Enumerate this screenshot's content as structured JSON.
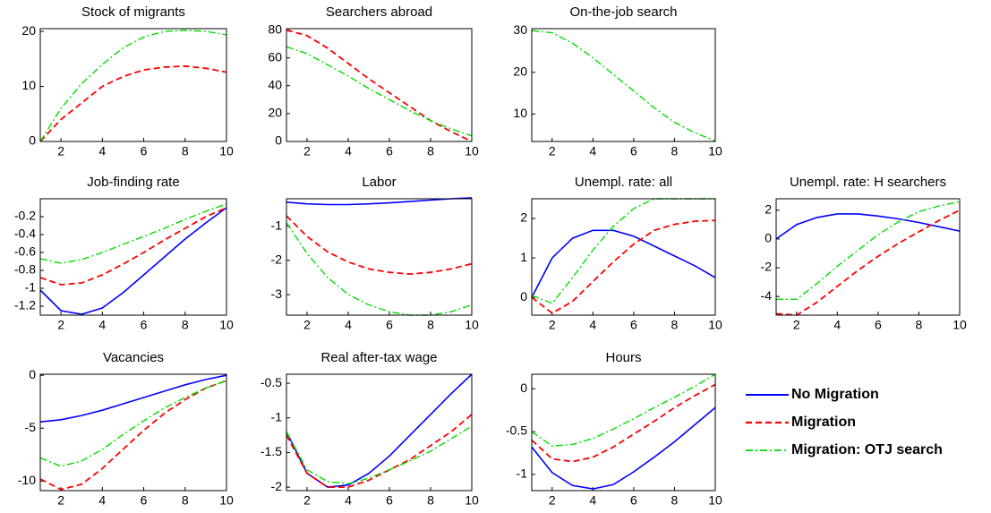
{
  "chart_data": [
    {
      "type": "line",
      "title": "Stock of migrants",
      "x": [
        1,
        2,
        3,
        4,
        5,
        6,
        7,
        8,
        9,
        10
      ],
      "xlim": [
        1,
        10
      ],
      "xticks": [
        2,
        4,
        6,
        8,
        10
      ],
      "ylim": [
        0,
        20.5
      ],
      "yticks": [
        0,
        10,
        20
      ],
      "series": [
        {
          "name": "Migration",
          "color": "#ff0000",
          "linestyle": "dashed",
          "values": [
            0,
            4,
            7,
            10,
            11.8,
            13,
            13.5,
            13.7,
            13.3,
            12.6
          ]
        },
        {
          "name": "Migration: OTJ search",
          "color": "#00dd00",
          "linestyle": "dashdot",
          "values": [
            0,
            6,
            10.5,
            14,
            17,
            19,
            20,
            20.2,
            20,
            19.4
          ]
        }
      ]
    },
    {
      "type": "line",
      "title": "Searchers abroad",
      "x": [
        1,
        2,
        3,
        4,
        5,
        6,
        7,
        8,
        9,
        10
      ],
      "xlim": [
        1,
        10
      ],
      "xticks": [
        2,
        4,
        6,
        8,
        10
      ],
      "ylim": [
        0,
        81
      ],
      "yticks": [
        0,
        20,
        40,
        60,
        80
      ],
      "series": [
        {
          "name": "Migration",
          "color": "#ff0000",
          "linestyle": "dashed",
          "values": [
            80,
            76,
            67,
            56,
            45,
            35,
            25,
            15,
            7,
            0
          ]
        },
        {
          "name": "Migration: OTJ search",
          "color": "#00dd00",
          "linestyle": "dashdot",
          "values": [
            68,
            63,
            55,
            47,
            38,
            30,
            22,
            15,
            9,
            4
          ]
        }
      ]
    },
    {
      "type": "line",
      "title": "On-the-job search",
      "x": [
        1,
        2,
        3,
        4,
        5,
        6,
        7,
        8,
        9,
        10
      ],
      "xlim": [
        1,
        10
      ],
      "xticks": [
        2,
        4,
        6,
        8,
        10
      ],
      "ylim": [
        3.4,
        30.5
      ],
      "yticks": [
        10,
        20,
        30
      ],
      "series": [
        {
          "name": "Migration: OTJ search",
          "color": "#00dd00",
          "linestyle": "dashdot",
          "values": [
            30,
            29.5,
            27,
            23.5,
            19.5,
            15.5,
            11.5,
            8,
            5.5,
            3.5
          ]
        }
      ]
    },
    {
      "type": "line",
      "title": "Job-finding rate",
      "x": [
        1,
        2,
        3,
        4,
        5,
        6,
        7,
        8,
        9,
        10
      ],
      "xlim": [
        1,
        10
      ],
      "xticks": [
        2,
        4,
        6,
        8,
        10
      ],
      "ylim": [
        -1.3,
        0
      ],
      "yticks": [
        -1.2,
        -1,
        -0.8,
        -0.6,
        -0.4,
        -0.2
      ],
      "series": [
        {
          "name": "No Migration",
          "color": "#0000ff",
          "linestyle": "solid",
          "values": [
            -1.02,
            -1.25,
            -1.29,
            -1.22,
            -1.05,
            -0.85,
            -0.65,
            -0.45,
            -0.27,
            -0.1
          ]
        },
        {
          "name": "Migration",
          "color": "#ff0000",
          "linestyle": "dashed",
          "values": [
            -0.88,
            -0.96,
            -0.94,
            -0.85,
            -0.73,
            -0.6,
            -0.46,
            -0.33,
            -0.2,
            -0.1
          ]
        },
        {
          "name": "Migration: OTJ search",
          "color": "#00dd00",
          "linestyle": "dashdot",
          "values": [
            -0.67,
            -0.72,
            -0.68,
            -0.6,
            -0.51,
            -0.42,
            -0.33,
            -0.23,
            -0.14,
            -0.06
          ]
        }
      ]
    },
    {
      "type": "line",
      "title": "Labor",
      "x": [
        1,
        2,
        3,
        4,
        5,
        6,
        7,
        8,
        9,
        10
      ],
      "xlim": [
        1,
        10
      ],
      "xticks": [
        2,
        4,
        6,
        8,
        10
      ],
      "ylim": [
        -3.6,
        -0.2
      ],
      "yticks": [
        -3,
        -2,
        -1
      ],
      "series": [
        {
          "name": "No Migration",
          "color": "#0000ff",
          "linestyle": "solid",
          "values": [
            -0.3,
            -0.35,
            -0.37,
            -0.37,
            -0.35,
            -0.32,
            -0.28,
            -0.24,
            -0.2,
            -0.17
          ]
        },
        {
          "name": "Migration",
          "color": "#ff0000",
          "linestyle": "dashed",
          "values": [
            -0.7,
            -1.3,
            -1.75,
            -2.05,
            -2.25,
            -2.35,
            -2.4,
            -2.35,
            -2.25,
            -2.1
          ]
        },
        {
          "name": "Migration: OTJ search",
          "color": "#00dd00",
          "linestyle": "dashdot",
          "values": [
            -0.9,
            -1.8,
            -2.5,
            -3.0,
            -3.3,
            -3.5,
            -3.6,
            -3.6,
            -3.5,
            -3.3
          ]
        }
      ]
    },
    {
      "type": "line",
      "title": "Unempl. rate: all",
      "x": [
        1,
        2,
        3,
        4,
        5,
        6,
        7,
        8,
        9,
        10
      ],
      "xlim": [
        1,
        10
      ],
      "xticks": [
        2,
        4,
        6,
        8,
        10
      ],
      "ylim": [
        -0.45,
        2.5
      ],
      "yticks": [
        0,
        1,
        2
      ],
      "series": [
        {
          "name": "No Migration",
          "color": "#0000ff",
          "linestyle": "solid",
          "values": [
            0,
            1,
            1.5,
            1.7,
            1.7,
            1.55,
            1.3,
            1.05,
            0.8,
            0.5
          ]
        },
        {
          "name": "Migration",
          "color": "#ff0000",
          "linestyle": "dashed",
          "values": [
            0,
            -0.4,
            -0.1,
            0.4,
            0.9,
            1.35,
            1.7,
            1.85,
            1.93,
            1.95
          ]
        },
        {
          "name": "Migration: OTJ search",
          "color": "#00dd00",
          "linestyle": "dashdot",
          "values": [
            0.05,
            -0.15,
            0.5,
            1.2,
            1.8,
            2.25,
            2.5,
            2.5,
            2.5,
            2.5
          ]
        }
      ]
    },
    {
      "type": "line",
      "title": "Unempl. rate: H searchers",
      "x": [
        1,
        2,
        3,
        4,
        5,
        6,
        7,
        8,
        9,
        10
      ],
      "xlim": [
        1,
        10
      ],
      "xticks": [
        2,
        4,
        6,
        8,
        10
      ],
      "ylim": [
        -5.3,
        2.8
      ],
      "yticks": [
        -4,
        -2,
        0,
        2
      ],
      "series": [
        {
          "name": "No Migration",
          "color": "#0000ff",
          "linestyle": "solid",
          "values": [
            0,
            1,
            1.5,
            1.75,
            1.75,
            1.6,
            1.4,
            1.15,
            0.85,
            0.55
          ]
        },
        {
          "name": "Migration",
          "color": "#ff0000",
          "linestyle": "dashed",
          "values": [
            -5.2,
            -5.3,
            -4.4,
            -3.3,
            -2.2,
            -1.2,
            -0.3,
            0.5,
            1.3,
            2.0
          ]
        },
        {
          "name": "Migration: OTJ search",
          "color": "#00dd00",
          "linestyle": "dashdot",
          "values": [
            -4.2,
            -4.2,
            -3.1,
            -1.9,
            -0.8,
            0.3,
            1.2,
            1.9,
            2.3,
            2.6
          ]
        }
      ]
    },
    {
      "type": "line",
      "title": "Vacancies",
      "x": [
        1,
        2,
        3,
        4,
        5,
        6,
        7,
        8,
        9,
        10
      ],
      "xlim": [
        1,
        10
      ],
      "xticks": [
        2,
        4,
        6,
        8,
        10
      ],
      "ylim": [
        -10.9,
        0.1
      ],
      "yticks": [
        -10,
        -5,
        0
      ],
      "series": [
        {
          "name": "No Migration",
          "color": "#0000ff",
          "linestyle": "solid",
          "values": [
            -4.4,
            -4.2,
            -3.8,
            -3.3,
            -2.7,
            -2.1,
            -1.5,
            -0.9,
            -0.4,
            0
          ]
        },
        {
          "name": "Migration",
          "color": "#ff0000",
          "linestyle": "dashed",
          "values": [
            -9.8,
            -10.8,
            -10.3,
            -8.8,
            -7,
            -5.2,
            -3.6,
            -2.3,
            -1.2,
            -0.5
          ]
        },
        {
          "name": "Migration: OTJ search",
          "color": "#00dd00",
          "linestyle": "dashdot",
          "values": [
            -7.8,
            -8.6,
            -8.1,
            -7,
            -5.6,
            -4.3,
            -3.1,
            -2.1,
            -1.2,
            -0.5
          ]
        }
      ]
    },
    {
      "type": "line",
      "title": "Real after-tax wage",
      "x": [
        1,
        2,
        3,
        4,
        5,
        6,
        7,
        8,
        9,
        10
      ],
      "xlim": [
        1,
        10
      ],
      "xticks": [
        2,
        4,
        6,
        8,
        10
      ],
      "ylim": [
        -2.05,
        -0.37
      ],
      "yticks": [
        -2,
        -1.5,
        -1,
        -0.5
      ],
      "series": [
        {
          "name": "No Migration",
          "color": "#0000ff",
          "linestyle": "solid",
          "values": [
            -1.2,
            -1.8,
            -2.0,
            -1.97,
            -1.8,
            -1.55,
            -1.25,
            -0.95,
            -0.65,
            -0.37
          ]
        },
        {
          "name": "Migration",
          "color": "#ff0000",
          "linestyle": "dashed",
          "values": [
            -1.25,
            -1.8,
            -2.0,
            -2.0,
            -1.9,
            -1.75,
            -1.6,
            -1.4,
            -1.2,
            -0.95
          ]
        },
        {
          "name": "Migration: OTJ search",
          "color": "#00dd00",
          "linestyle": "dashdot",
          "values": [
            -1.2,
            -1.75,
            -1.92,
            -1.95,
            -1.87,
            -1.75,
            -1.62,
            -1.48,
            -1.3,
            -1.12
          ]
        }
      ]
    },
    {
      "type": "line",
      "title": "Hours",
      "x": [
        1,
        2,
        3,
        4,
        5,
        6,
        7,
        8,
        9,
        10
      ],
      "xlim": [
        1,
        10
      ],
      "xticks": [
        2,
        4,
        6,
        8,
        10
      ],
      "ylim": [
        -1.19,
        0.17
      ],
      "yticks": [
        -1,
        -0.5,
        0
      ],
      "legend": "east",
      "series": [
        {
          "name": "No Migration",
          "color": "#0000ff",
          "linestyle": "solid",
          "values": [
            -0.68,
            -0.98,
            -1.13,
            -1.17,
            -1.12,
            -0.97,
            -0.8,
            -0.62,
            -0.42,
            -0.22
          ]
        },
        {
          "name": "Migration",
          "color": "#ff0000",
          "linestyle": "dashed",
          "values": [
            -0.6,
            -0.82,
            -0.85,
            -0.8,
            -0.68,
            -0.53,
            -0.38,
            -0.22,
            -0.08,
            0.05
          ]
        },
        {
          "name": "Migration: OTJ search",
          "color": "#00dd00",
          "linestyle": "dashdot",
          "values": [
            -0.5,
            -0.67,
            -0.65,
            -0.58,
            -0.47,
            -0.35,
            -0.22,
            -0.1,
            0.03,
            0.17
          ]
        }
      ]
    }
  ]
}
